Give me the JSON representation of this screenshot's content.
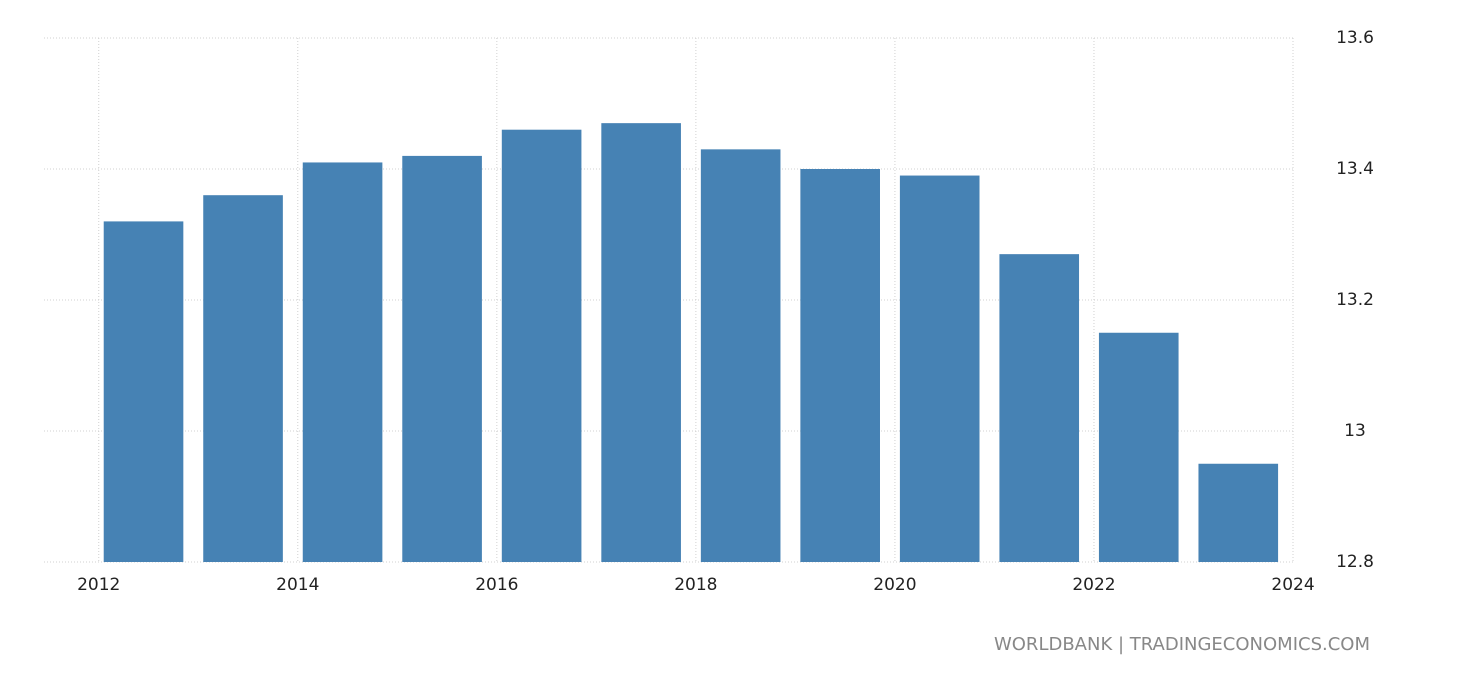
{
  "chart_data": {
    "type": "bar",
    "x": [
      2012,
      2013,
      2014,
      2015,
      2016,
      2017,
      2018,
      2019,
      2020,
      2021,
      2022,
      2023
    ],
    "values": [
      13.32,
      13.36,
      13.41,
      13.42,
      13.46,
      13.47,
      13.43,
      13.4,
      13.39,
      13.27,
      13.15,
      12.95
    ],
    "color": "#4682b4",
    "xlim": [
      2011.45,
      2024.02
    ],
    "xticks": [
      2012,
      2014,
      2016,
      2018,
      2020,
      2022,
      2024
    ],
    "ylim": [
      12.8,
      13.6
    ],
    "yticks": [
      13.6,
      13.4,
      13.2,
      13,
      12.8
    ],
    "grid": true,
    "source": "WORLDBANK | TRADINGECONOMICS.COM"
  }
}
